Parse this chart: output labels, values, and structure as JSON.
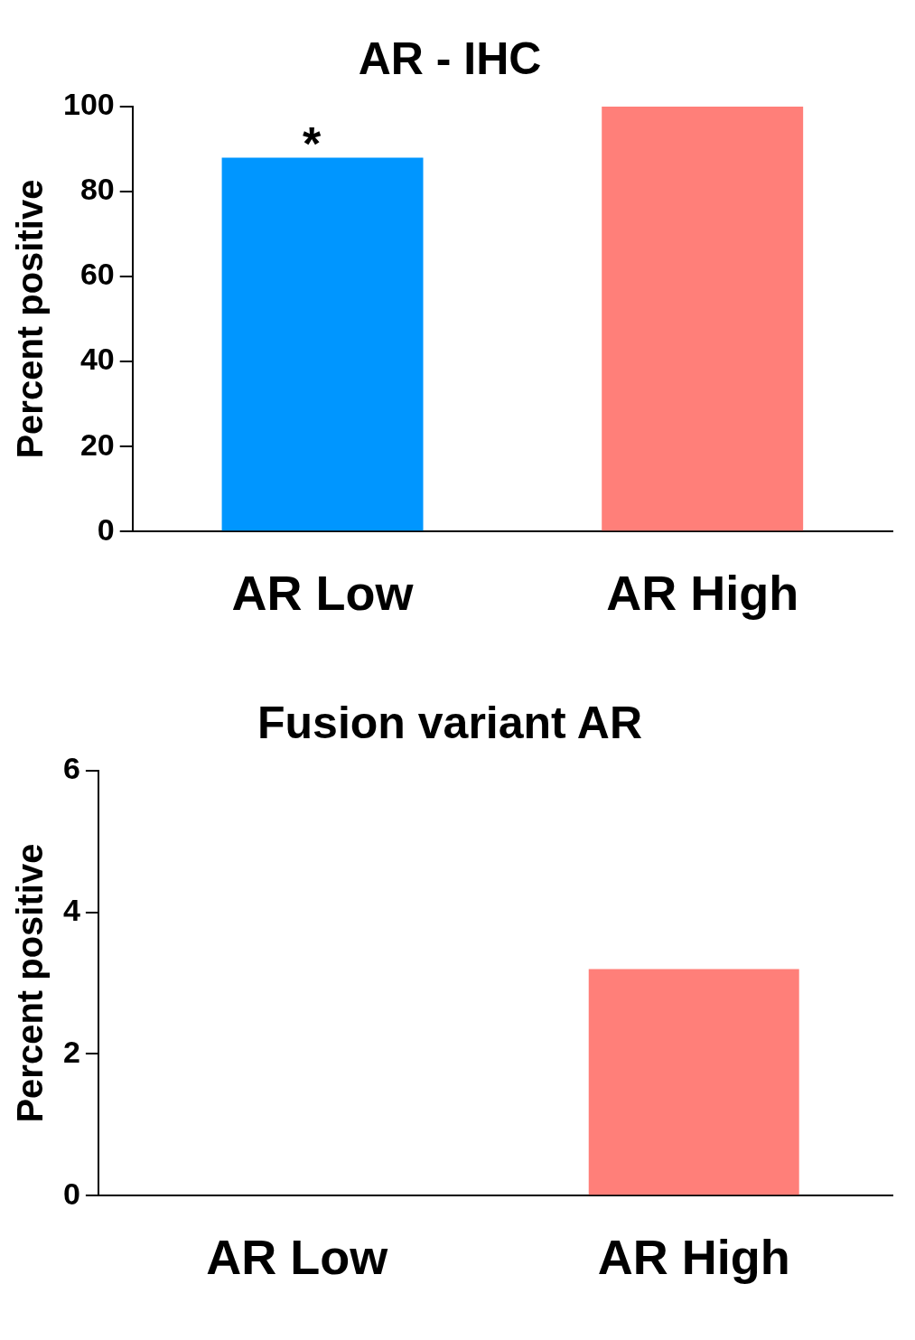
{
  "chart_data": [
    {
      "type": "bar",
      "title": "AR - IHC",
      "ylabel": "Percent positive",
      "categories": [
        "AR Low",
        "AR High"
      ],
      "values": [
        88,
        100
      ],
      "colors": [
        "#0096ff",
        "#ff7f79"
      ],
      "ylim": [
        0,
        100
      ],
      "yticks": [
        0,
        20,
        40,
        60,
        80,
        100
      ],
      "grid": false,
      "legend": false,
      "annotations": [
        {
          "text": "*",
          "x": "AR Low",
          "y": 88
        }
      ]
    },
    {
      "type": "bar",
      "title": "Fusion variant AR",
      "ylabel": "Percent positive",
      "categories": [
        "AR Low",
        "AR High"
      ],
      "values": [
        0,
        3.2
      ],
      "colors": [
        "#0096ff",
        "#ff7f79"
      ],
      "ylim": [
        0,
        6
      ],
      "yticks": [
        0,
        2,
        4,
        6
      ],
      "grid": false,
      "legend": false
    }
  ]
}
